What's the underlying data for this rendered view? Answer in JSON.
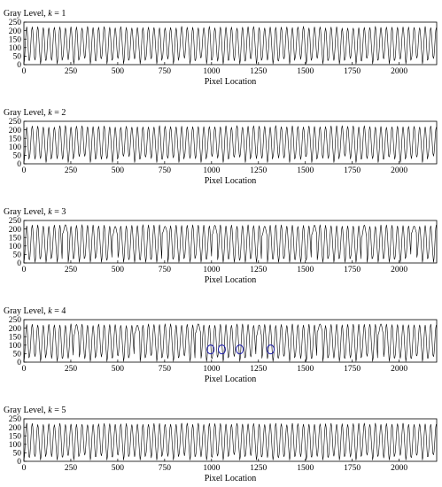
{
  "chart_data": [
    {
      "type": "line",
      "title": "Gray Level,  k = 1",
      "title_prefix": "Gray Level,  ",
      "title_var": "k",
      "title_suffix": " = 1",
      "xlabel": "Pixel Location",
      "xlim": [
        0,
        2200
      ],
      "ylim": [
        0,
        250
      ],
      "xticks": [
        0,
        250,
        500,
        750,
        1000,
        1250,
        1500,
        1750,
        2000
      ],
      "yticks": [
        0,
        50,
        100,
        150,
        200,
        250
      ],
      "signal": {
        "period": 29.5,
        "high": 220,
        "low": 30,
        "deep_low": 5,
        "deep_every": 3,
        "skip_every": 0
      },
      "markers": []
    },
    {
      "type": "line",
      "title": "Gray Level,  k = 2",
      "title_prefix": "Gray Level,  ",
      "title_var": "k",
      "title_suffix": " = 2",
      "xlabel": "Pixel Location",
      "xlim": [
        0,
        2200
      ],
      "ylim": [
        0,
        250
      ],
      "xticks": [
        0,
        250,
        500,
        750,
        1000,
        1250,
        1500,
        1750,
        2000
      ],
      "yticks": [
        0,
        50,
        100,
        150,
        200,
        250
      ],
      "signal": {
        "period": 29.5,
        "high": 220,
        "low": 35,
        "deep_low": 8,
        "deep_every": 4,
        "skip_every": 0
      },
      "markers": []
    },
    {
      "type": "line",
      "title": "Gray Level,  k = 3",
      "title_prefix": "Gray Level,  ",
      "title_var": "k",
      "title_suffix": " = 3",
      "xlabel": "Pixel Location",
      "xlim": [
        0,
        2200
      ],
      "ylim": [
        0,
        250
      ],
      "xticks": [
        0,
        250,
        500,
        750,
        1000,
        1250,
        1500,
        1750,
        2000
      ],
      "yticks": [
        0,
        50,
        100,
        150,
        200,
        250
      ],
      "signal": {
        "period": 29.5,
        "high": 220,
        "low": 25,
        "deep_low": 5,
        "deep_every": 2,
        "skip_every": 9
      },
      "markers": []
    },
    {
      "type": "line",
      "title": "Gray Level,  k = 4",
      "title_prefix": "Gray Level,  ",
      "title_var": "k",
      "title_suffix": " = 4",
      "xlabel": "Pixel Location",
      "xlim": [
        0,
        2200
      ],
      "ylim": [
        0,
        250
      ],
      "xticks": [
        0,
        250,
        500,
        750,
        1000,
        1250,
        1500,
        1750,
        2000
      ],
      "yticks": [
        0,
        50,
        100,
        150,
        200,
        250
      ],
      "signal": {
        "period": 29.5,
        "high": 220,
        "low": 30,
        "deep_low": 5,
        "deep_every": 3,
        "skip_every": 11
      },
      "markers": [
        {
          "x": 995,
          "y": 75,
          "color": "#1a1aa8"
        },
        {
          "x": 1055,
          "y": 75,
          "color": "#1a1aa8"
        },
        {
          "x": 1150,
          "y": 75,
          "color": "#1a1aa8"
        },
        {
          "x": 1315,
          "y": 75,
          "color": "#1a1aa8"
        }
      ]
    },
    {
      "type": "line",
      "title": "Gray Level,  k = 5",
      "title_prefix": "Gray Level,  ",
      "title_var": "k",
      "title_suffix": " = 5",
      "xlabel": "Pixel Location",
      "xlim": [
        0,
        2200
      ],
      "ylim": [
        0,
        250
      ],
      "xticks": [
        0,
        250,
        500,
        750,
        1000,
        1250,
        1500,
        1750,
        2000
      ],
      "yticks": [
        0,
        50,
        100,
        150,
        200,
        250
      ],
      "signal": {
        "period": 29.5,
        "high": 220,
        "low": 30,
        "deep_low": 8,
        "deep_every": 3,
        "skip_every": 0
      },
      "markers": []
    }
  ]
}
